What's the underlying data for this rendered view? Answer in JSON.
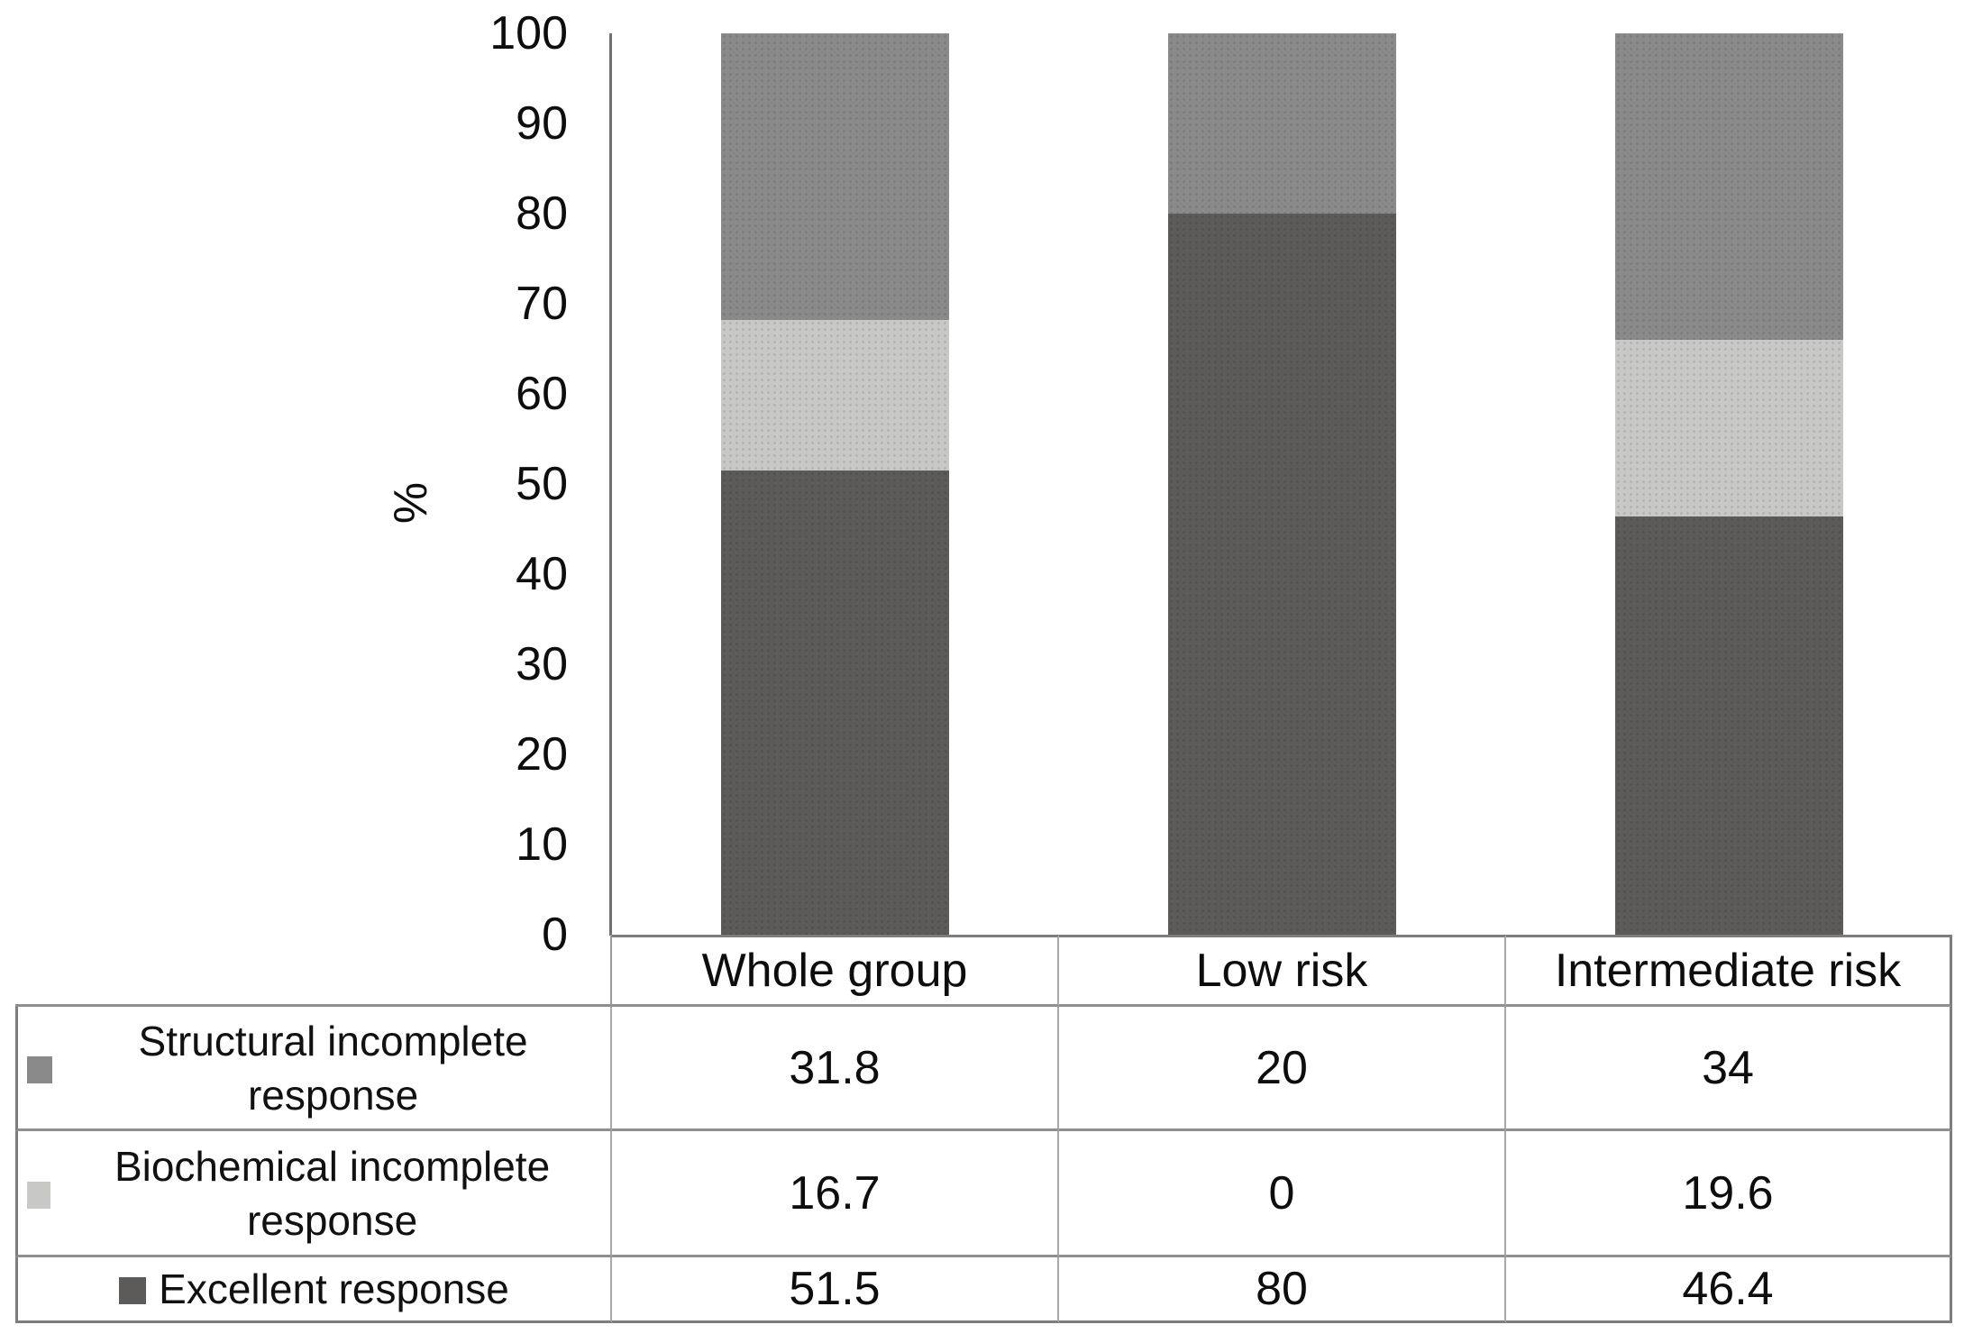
{
  "chart_data": {
    "type": "bar",
    "subtype": "stacked-percent-column",
    "title": "",
    "xlabel": "",
    "ylabel": "%",
    "ylim": [
      0,
      100
    ],
    "yticks": [
      0,
      10,
      20,
      30,
      40,
      50,
      60,
      70,
      80,
      90,
      100
    ],
    "grid": false,
    "legend_position": "data-table-left-column",
    "categories": [
      "Whole group",
      "Low risk",
      "Intermediate risk"
    ],
    "series": [
      {
        "name": "Structural incomplete response",
        "color": "#8a8a8a",
        "values": [
          31.8,
          20,
          34
        ]
      },
      {
        "name": "Biochemical incomplete response",
        "color": "#c8c8c6",
        "values": [
          16.7,
          0,
          19.6
        ]
      },
      {
        "name": "Excellent response",
        "color": "#5d5b59",
        "values": [
          51.5,
          80,
          46.4
        ]
      }
    ]
  },
  "style_colors": {
    "axis_line": "#6f6f6f",
    "table_outer_border": "#7d7d7d",
    "table_inner_horizontal": "#8f8f8f",
    "table_inner_vertical": "#a8a8a8",
    "text": "#0d0d0d",
    "background": "#ffffff"
  }
}
